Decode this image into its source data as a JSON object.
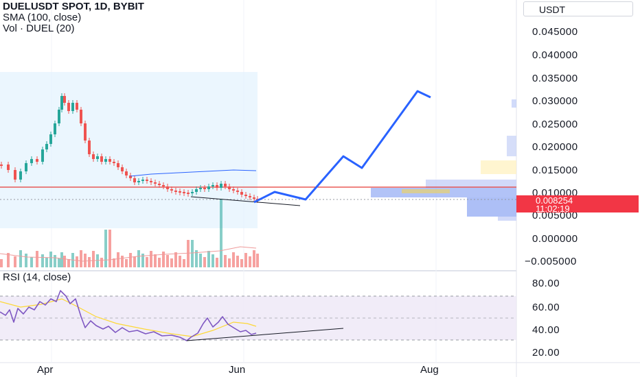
{
  "legend": {
    "symbol": "DUELUSDT SPOT, 1D, BYBIT",
    "indicator_sma": "SMA (100, close)",
    "indicator_vol": "Vol · DUEL (20)"
  },
  "rsi_legend": "RSI (14, close)",
  "currency_button": "USDT",
  "price_axis": [
    "0.045000",
    "0.040000",
    "0.035000",
    "0.030000",
    "0.025000",
    "0.020000",
    "0.015000",
    "0.010000",
    "0.005000",
    "0.000000",
    "−0.005000"
  ],
  "rsi_axis": [
    "80.00",
    "60.00",
    "40.00",
    "20.00"
  ],
  "current_price": {
    "value": "0.008254",
    "countdown": "11:02:19"
  },
  "time_axis": [
    "Apr",
    "Jun",
    "Aug"
  ],
  "colors": {
    "up": "#26a69a",
    "down": "#ef5350",
    "projection": "#2962ff",
    "sma": "#2962ff",
    "rsi_line": "#7e57c2",
    "rsi_ma": "#fdd835",
    "horizontal_line": "#e53935",
    "rsi_band": "#ede7f6",
    "highlight_box": "#e3f2fd"
  }
}
